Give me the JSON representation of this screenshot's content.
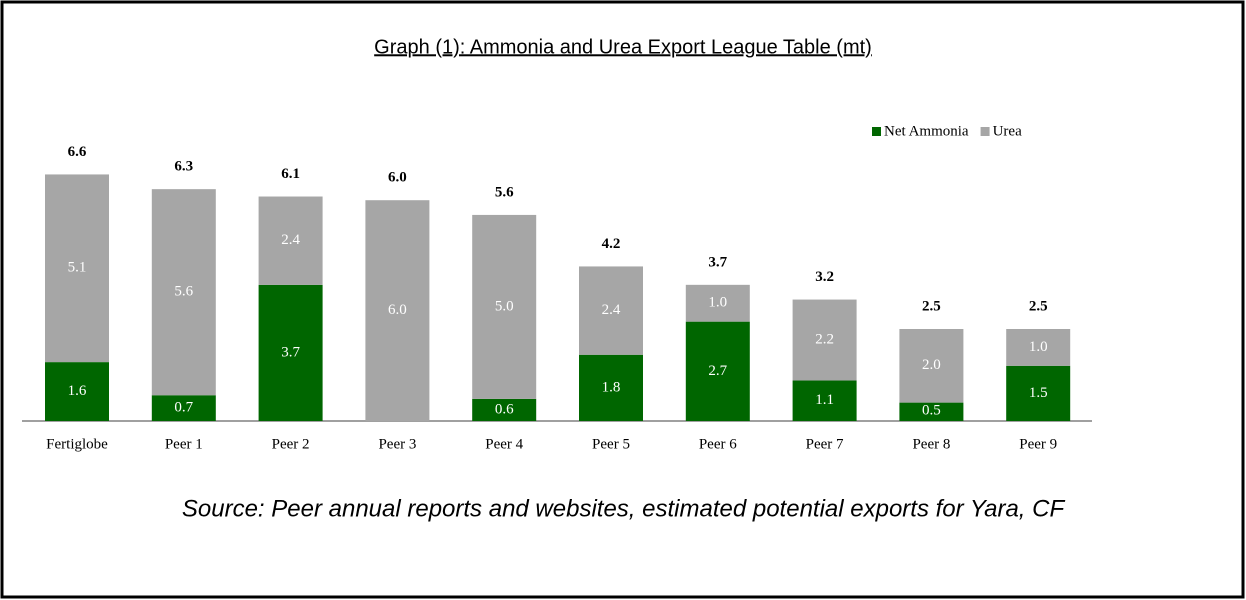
{
  "chart_data": {
    "type": "stacked_bar",
    "title": "Graph (1): Ammonia and Urea Export League Table (mt)",
    "categories": [
      "Fertiglobe",
      "Peer 1",
      "Peer 2",
      "Peer 3",
      "Peer 4",
      "Peer 5",
      "Peer 6",
      "Peer 7",
      "Peer 8",
      "Peer 9"
    ],
    "series": [
      {
        "name": "Net Ammonia",
        "color": "#006600",
        "values": [
          1.6,
          0.7,
          3.7,
          0,
          0.6,
          1.8,
          2.7,
          1.1,
          0.5,
          1.5
        ],
        "value_labels": [
          "1.6",
          "0.7",
          "3.7",
          null,
          "0.6",
          "1.8",
          "2.7",
          "1.1",
          "0.5",
          "1.5"
        ]
      },
      {
        "name": "Urea",
        "color": "#a6a6a6",
        "values": [
          5.1,
          5.6,
          2.4,
          6.0,
          5.0,
          2.4,
          1.0,
          2.2,
          2.0,
          1.0
        ],
        "value_labels": [
          "5.1",
          "5.6",
          "2.4",
          "6.0",
          "5.0",
          "2.4",
          "1.0",
          "2.2",
          "2.0",
          "1.0"
        ]
      }
    ],
    "total_labels": [
      "6.6",
      "6.3",
      "6.1",
      "6.0",
      "5.6",
      "4.2",
      "3.7",
      "3.2",
      "2.5",
      "2.5"
    ],
    "legend": "top-right",
    "source": "Source: Peer annual reports and websites, estimated potential exports for Yara, CF"
  }
}
